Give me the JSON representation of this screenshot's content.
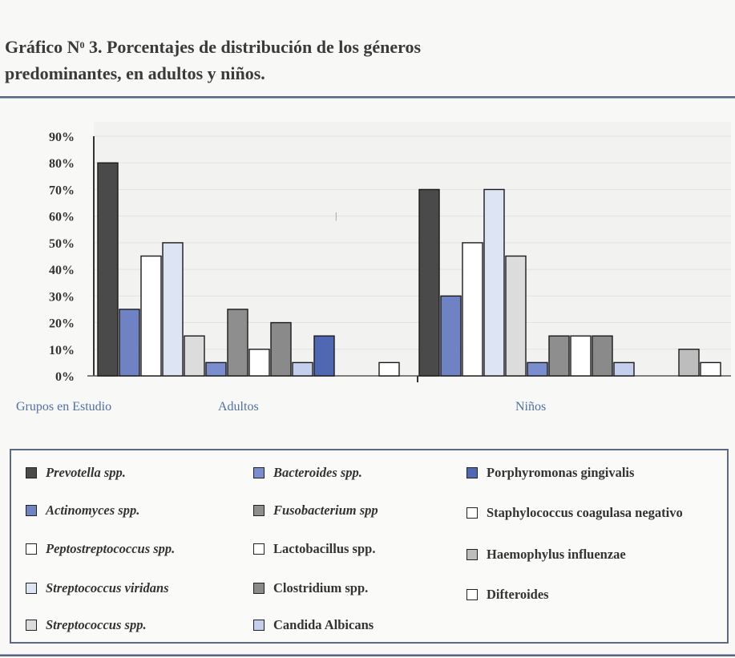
{
  "header": {
    "title_part1": "Gráfico N",
    "title_sup": "0",
    "title_part2": " 3. Porcentajes de distribución de los  géneros",
    "title_line2": "predominantes, en adultos y niños."
  },
  "chart_data": {
    "type": "bar",
    "title": "Porcentajes de distribución de los géneros predominantes, en adultos y niños.",
    "xlabel": "Grupos en Estudio",
    "ylabel": "",
    "ylim": [
      0,
      90
    ],
    "yticks": [
      "0%",
      "10%",
      "20%",
      "30%",
      "40%",
      "50%",
      "60%",
      "70%",
      "80%",
      "90%"
    ],
    "groups": [
      {
        "name": "Adultos",
        "bars": [
          {
            "series": "Prevotella spp.",
            "value": 80
          },
          {
            "series": "Actinomyces spp.",
            "value": 25
          },
          {
            "series": "Peptostreptococcus spp.",
            "value": 45
          },
          {
            "series": "Streptococcus viridans",
            "value": 50
          },
          {
            "series": "Streptococcus spp.",
            "value": 15
          },
          {
            "series": "Bacteroides spp.",
            "value": 5
          },
          {
            "series": "Fusobacterium spp",
            "value": 25
          },
          {
            "series": "Lactobacillus spp.",
            "value": 10
          },
          {
            "series": "Clostridium spp.",
            "value": 20
          },
          {
            "series": "Candida Albicans",
            "value": 5
          },
          {
            "series": "Porphyromonas gingivalis",
            "value": 15
          },
          {
            "series": "Staphylococcus coagulasa negativo",
            "value": 0
          },
          {
            "series": "Haemophylus influenzae",
            "value": 0
          },
          {
            "series": "Difteroides",
            "value": 5
          }
        ]
      },
      {
        "name": "Niños",
        "bars": [
          {
            "series": "Prevotella spp.",
            "value": 70
          },
          {
            "series": "Actinomyces spp.",
            "value": 30
          },
          {
            "series": "Peptostreptococcus spp.",
            "value": 50
          },
          {
            "series": "Streptococcus viridans",
            "value": 70
          },
          {
            "series": "Streptococcus spp.",
            "value": 45
          },
          {
            "series": "Bacteroides spp.",
            "value": 5
          },
          {
            "series": "Fusobacterium spp",
            "value": 15
          },
          {
            "series": "Lactobacillus spp.",
            "value": 15
          },
          {
            "series": "Clostridium spp.",
            "value": 15
          },
          {
            "series": "Candida Albicans",
            "value": 5
          },
          {
            "series": "Porphyromonas gingivalis",
            "value": 0
          },
          {
            "series": "Staphylococcus coagulasa negativo",
            "value": 0
          },
          {
            "series": "Haemophylus influenzae",
            "value": 10
          },
          {
            "series": "Difteroides",
            "value": 5
          }
        ]
      }
    ],
    "series": [
      {
        "name": "Prevotella spp.",
        "color": "#4a4a4a",
        "italic": true
      },
      {
        "name": "Actinomyces spp.",
        "color": "#6f82c4",
        "italic": true
      },
      {
        "name": "Peptostreptococcus spp.",
        "color": "#ffffff",
        "italic": true
      },
      {
        "name": "Streptococcus viridans",
        "color": "#dde4f4",
        "italic": true
      },
      {
        "name": "Streptococcus spp.",
        "color": "#dcdcdc",
        "italic": true
      },
      {
        "name": "Bacteroides spp.",
        "color": "#7a8dcf",
        "italic": true
      },
      {
        "name": "Fusobacterium spp",
        "color": "#8e8e8e",
        "italic": true
      },
      {
        "name": "Lactobacillus spp.",
        "color": "#ffffff",
        "italic": false
      },
      {
        "name": "Clostridium spp.",
        "color": "#8a8a8a",
        "italic": false
      },
      {
        "name": "Candida Albicans",
        "color": "#c4cfee",
        "italic": false
      },
      {
        "name": "Porphyromonas gingivalis",
        "color": "#4f68b4",
        "italic": false
      },
      {
        "name": "Staphylococcus coagulasa negativo",
        "color": "#ffffff",
        "italic": false
      },
      {
        "name": "Haemophylus influenzae",
        "color": "#bdbdbd",
        "italic": false
      },
      {
        "name": "Difteroides",
        "color": "#ffffff",
        "italic": false
      }
    ]
  },
  "legend_items": [
    {
      "label": "Prevotella spp.",
      "color": "#4a4a4a",
      "italic": true
    },
    {
      "label": "Actinomyces spp.",
      "color": "#6f82c4",
      "italic": true
    },
    {
      "label": "Peptostreptococcus spp.",
      "color": "#ffffff",
      "italic": true
    },
    {
      "label": "Streptococcus viridans",
      "color": "#dde4f4",
      "italic": true
    },
    {
      "label": "Streptococcus spp.",
      "color": "#dcdcdc",
      "italic": true
    },
    {
      "label": "Bacteroides spp.",
      "color": "#7a8dcf",
      "italic": true
    },
    {
      "label": "Fusobacterium spp",
      "color": "#8e8e8e",
      "italic": true
    },
    {
      "label": "Lactobacillus spp.",
      "color": "#ffffff",
      "italic": false
    },
    {
      "label": "Clostridium spp.",
      "color": "#8a8a8a",
      "italic": false
    },
    {
      "label": "Candida Albicans",
      "color": "#c4cfee",
      "italic": false
    },
    {
      "label": "Porphyromonas gingivalis",
      "color": "#4f68b4",
      "italic": false
    },
    {
      "label": "Staphylococcus coagulasa negativo",
      "color": "#ffffff",
      "italic": false
    },
    {
      "label": "Haemophylus influenzae",
      "color": "#bdbdbd",
      "italic": false
    },
    {
      "label": "Difteroides",
      "color": "#ffffff",
      "italic": false
    }
  ],
  "x_labels": {
    "axis_title": "Grupos en Estudio",
    "group1": "Adultos",
    "group2": "Niños"
  }
}
